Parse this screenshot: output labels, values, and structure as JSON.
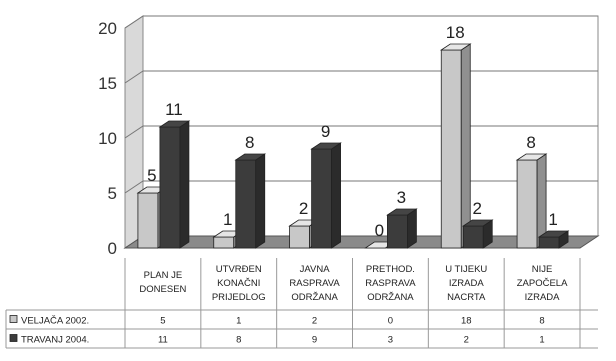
{
  "chart_data": {
    "type": "bar",
    "style": "3d-clustered-column-with-data-table",
    "ylim": [
      0,
      20
    ],
    "yticks": [
      "0",
      "5",
      "10",
      "15",
      "20"
    ],
    "grid": true,
    "categories": [
      [
        "PLAN JE",
        "DONESEN"
      ],
      [
        "UTVRĐEN",
        "KONAČNI",
        "PRIJEDLOG"
      ],
      [
        "JAVNA",
        "RASPRAVA",
        "ODRŽANA"
      ],
      [
        "PRETHOD.",
        "RASPRAVA",
        "ODRŽANA"
      ],
      [
        "U TIJEKU",
        "IZRADA",
        "NACRTA"
      ],
      [
        "NIJE",
        "ZAPOČELA",
        "IZRADA"
      ]
    ],
    "series": [
      {
        "name": "VELJAČA 2002.",
        "values": [
          5,
          1,
          2,
          0,
          18,
          8
        ],
        "color": "#c8c8c8"
      },
      {
        "name": "TRAVANJ 2004.",
        "values": [
          11,
          8,
          9,
          3,
          2,
          1
        ],
        "color": "#3c3c3c"
      }
    ]
  }
}
